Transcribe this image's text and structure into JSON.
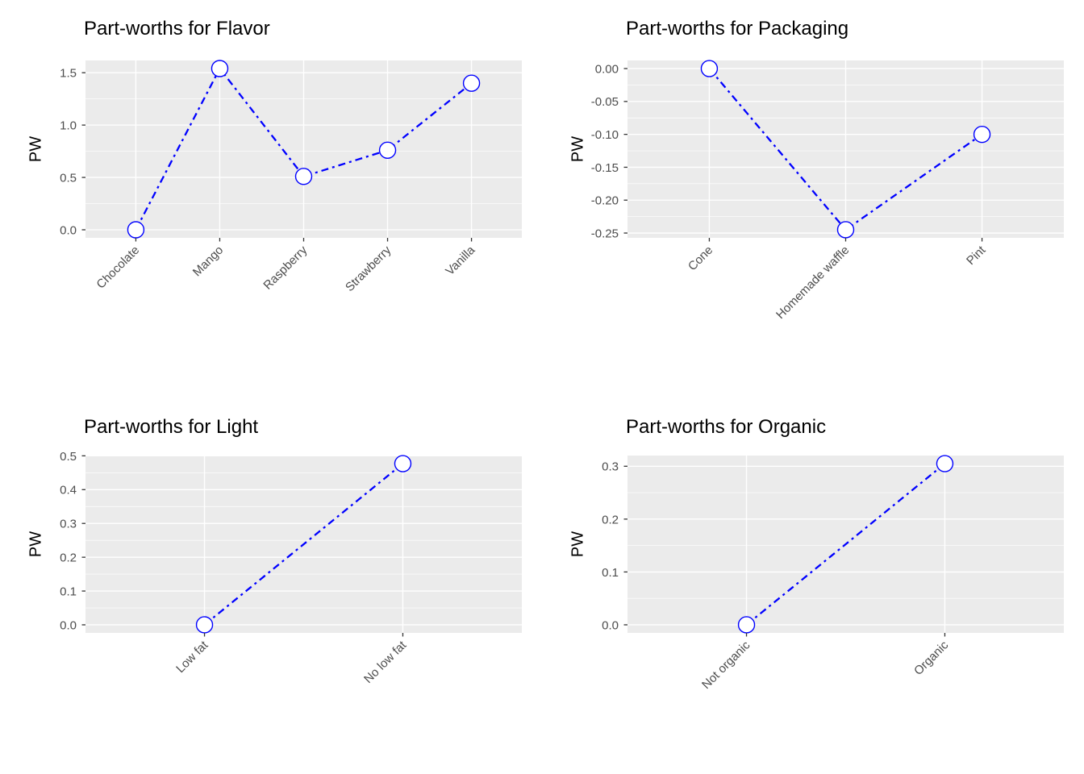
{
  "figure": {
    "ylabel": "PW",
    "colors": {
      "line": "#0000FF",
      "point_fill": "#FFFFFF",
      "panel_bg": "#EBEBEB",
      "grid": "#FFFFFF",
      "tick_text": "#4D4D4D",
      "tick_mark": "#333333",
      "title": "#000000",
      "background": "#FFFFFF"
    }
  },
  "chart_data": [
    {
      "type": "line",
      "title": "Part-worths for Flavor",
      "ylabel": "PW",
      "xlabel": "",
      "categories": [
        "Chocolate",
        "Mango",
        "Raspberry",
        "Strawberry",
        "Vanilla"
      ],
      "values": [
        0.0,
        1.54,
        0.51,
        0.76,
        1.4
      ],
      "yticks": [
        0.0,
        0.5,
        1.0,
        1.5
      ],
      "ytick_labels": [
        "0.0",
        "0.5",
        "1.0",
        "1.5"
      ],
      "ylim": [
        -0.077,
        1.617
      ],
      "grid": true,
      "legend": false,
      "linetype": "twodash",
      "marker": "open-circle"
    },
    {
      "type": "line",
      "title": "Part-worths for Packaging",
      "ylabel": "PW",
      "xlabel": "",
      "categories": [
        "Cone",
        "Homemade waffle",
        "Pint"
      ],
      "values": [
        0.0,
        -0.245,
        -0.1
      ],
      "yticks": [
        -0.25,
        -0.2,
        -0.15,
        -0.1,
        -0.05,
        0.0
      ],
      "ytick_labels": [
        "-0.25",
        "-0.20",
        "-0.15",
        "-0.10",
        "-0.05",
        "0.00"
      ],
      "ylim": [
        -0.2573,
        0.0123
      ],
      "grid": true,
      "legend": false,
      "linetype": "twodash",
      "marker": "open-circle"
    },
    {
      "type": "line",
      "title": "Part-worths for Light",
      "ylabel": "PW",
      "xlabel": "",
      "categories": [
        "Low fat",
        "No low fat"
      ],
      "values": [
        0.0,
        0.477
      ],
      "yticks": [
        0.0,
        0.1,
        0.2,
        0.3,
        0.4,
        0.5
      ],
      "ytick_labels": [
        "0.0",
        "0.1",
        "0.2",
        "0.3",
        "0.4",
        "0.5"
      ],
      "ylim": [
        -0.0239,
        0.5009
      ],
      "grid": true,
      "legend": false,
      "linetype": "twodash",
      "marker": "open-circle"
    },
    {
      "type": "line",
      "title": "Part-worths for Organic",
      "ylabel": "PW",
      "xlabel": "",
      "categories": [
        "Not organic",
        "Organic"
      ],
      "values": [
        0.0,
        0.305
      ],
      "yticks": [
        0.0,
        0.1,
        0.2,
        0.3
      ],
      "ytick_labels": [
        "0.0",
        "0.1",
        "0.2",
        "0.3"
      ],
      "ylim": [
        -0.0153,
        0.3203
      ],
      "grid": true,
      "legend": false,
      "linetype": "twodash",
      "marker": "open-circle"
    }
  ]
}
